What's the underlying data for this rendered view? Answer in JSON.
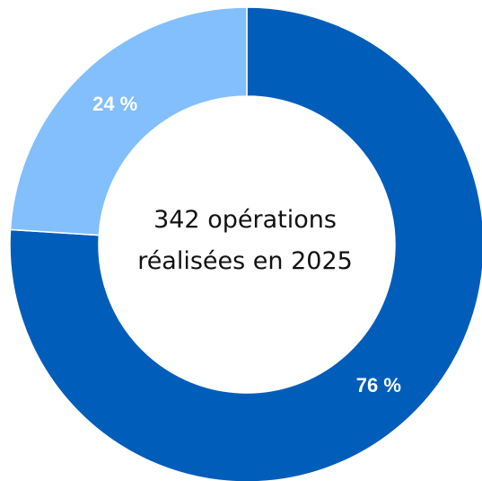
{
  "chart_data": {
    "type": "pie",
    "donut": true,
    "categories": [
      "",
      ""
    ],
    "values": [
      76,
      24
    ],
    "labels": [
      "76 %",
      "24 %"
    ],
    "colors": [
      "#005dba",
      "#82bffc"
    ],
    "center_text": [
      "342 opérations",
      "réalisées en 2025"
    ],
    "title": "",
    "legend": "none"
  }
}
